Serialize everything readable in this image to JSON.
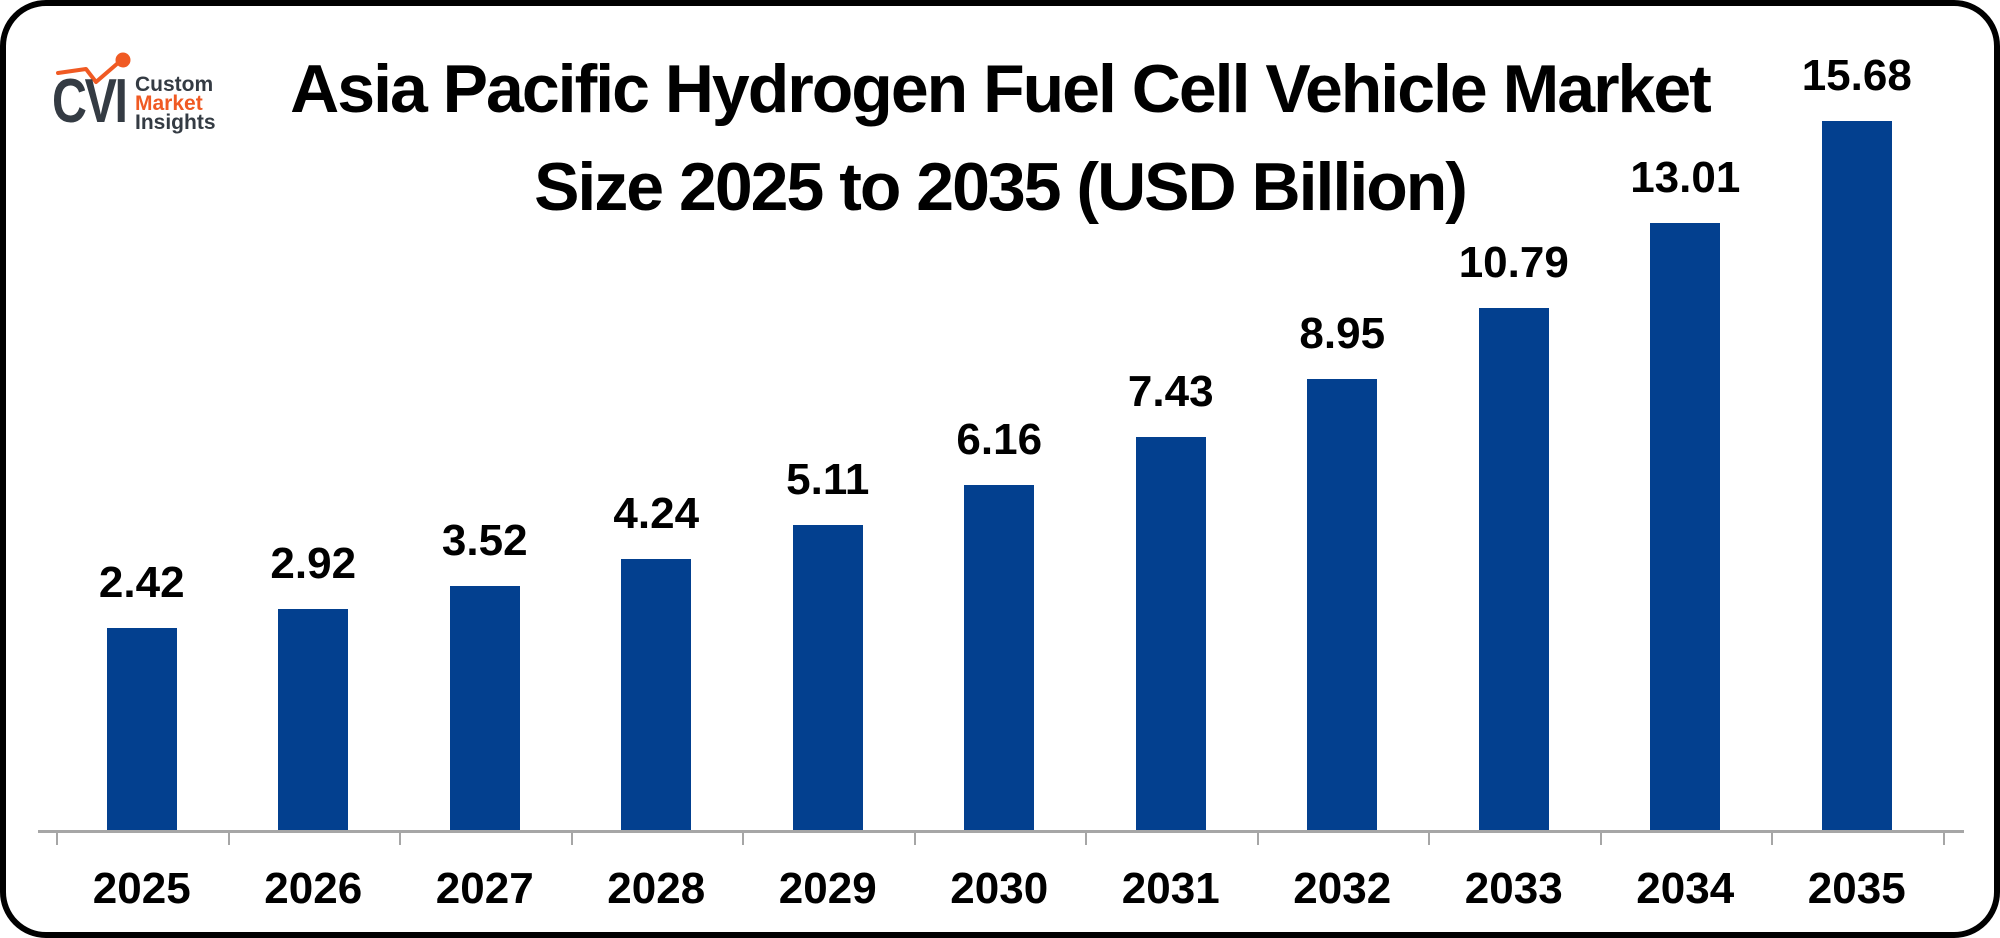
{
  "page": {
    "background": "#ffffff",
    "frame_border_color": "#000000"
  },
  "logo": {
    "monogram": "CVI",
    "word1": "Custom",
    "word2": "Market",
    "word3": "Insights",
    "dark_color": "#343b43",
    "accent_color": "#f05a23"
  },
  "chart_data": {
    "type": "bar",
    "title": "Asia Pacific Hydrogen Fuel Cell Vehicle Market Size 2025 to 2035 (USD Billion)",
    "title_lines": [
      "Asia Pacific Hydrogen Fuel Cell Vehicle Market",
      "Size 2025 to 2035 (USD Billion)"
    ],
    "unit": "USD Billion",
    "categories": [
      "2025",
      "2026",
      "2027",
      "2028",
      "2029",
      "2030",
      "2031",
      "2032",
      "2033",
      "2034",
      "2035"
    ],
    "values": [
      2.42,
      2.92,
      3.52,
      4.24,
      5.11,
      6.16,
      7.43,
      8.95,
      10.79,
      13.01,
      15.68
    ],
    "value_label_decimals": 2,
    "bar_color": "#03408f",
    "label_color": "#000000",
    "axis_color": "#a6a6a6",
    "xlabel": "",
    "ylabel": "",
    "y_axis": "hidden",
    "gridlines": false,
    "legend": "none",
    "value_label_position": "outside-end-above-bar"
  }
}
